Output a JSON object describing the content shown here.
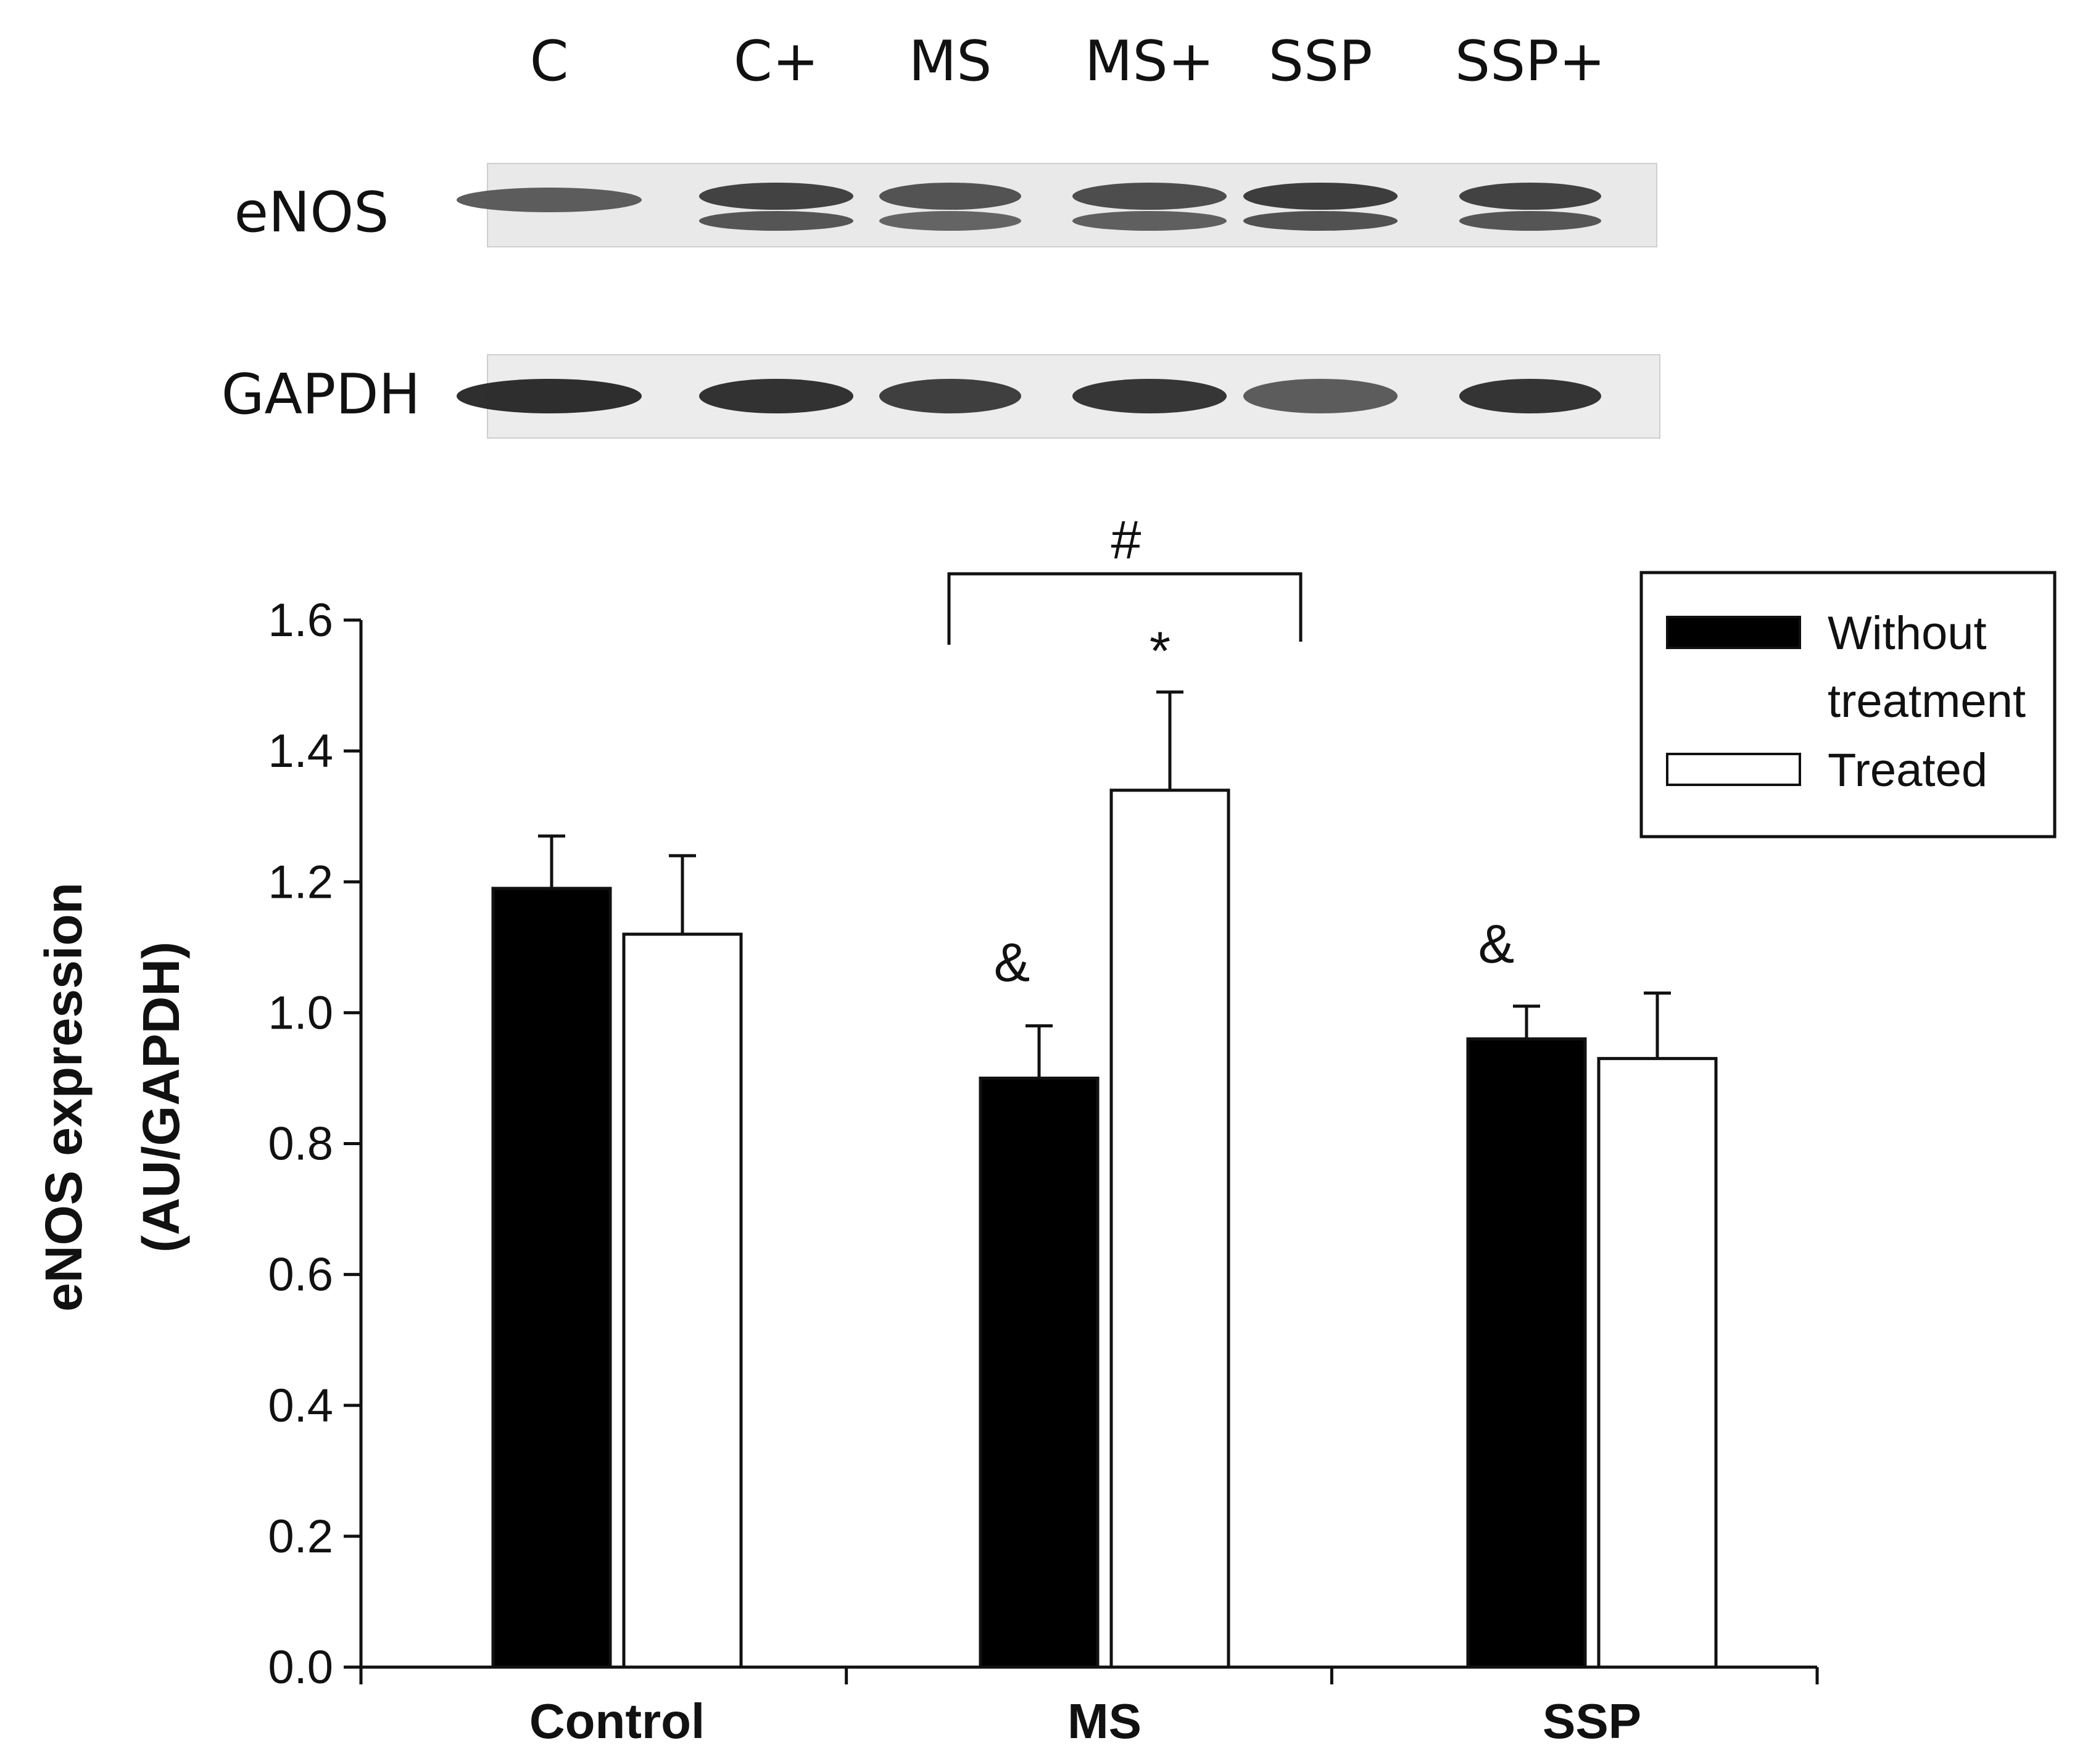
{
  "blot": {
    "lanes": [
      "C",
      "C+",
      "MS",
      "MS+",
      "SSP",
      "SSP+"
    ],
    "rows": [
      "eNOS",
      "GAPDH"
    ],
    "band_intensity": {
      "eNOS": [
        0.55,
        0.85,
        0.7,
        0.75,
        0.9,
        0.85
      ],
      "GAPDH": [
        0.95,
        0.92,
        0.8,
        0.88,
        0.55,
        0.9
      ]
    }
  },
  "chart_data": {
    "type": "bar",
    "categories": [
      "Control",
      "MS",
      "SSP"
    ],
    "series": [
      {
        "name": "Without treatment",
        "values": [
          1.19,
          0.9,
          0.96
        ],
        "errors": [
          0.08,
          0.08,
          0.05
        ],
        "color": "#000000"
      },
      {
        "name": "Treated",
        "values": [
          1.12,
          1.34,
          0.93
        ],
        "errors": [
          0.12,
          0.15,
          0.1
        ],
        "color": "#ffffff"
      }
    ],
    "ylabel_line1": "eNOS   expression",
    "ylabel_line2": "(AU/GAPDH)",
    "ylim": [
      0.0,
      1.6
    ],
    "yticks": [
      "0.0",
      "0.2",
      "0.4",
      "0.6",
      "0.8",
      "1.0",
      "1.2",
      "1.4",
      "1.6"
    ],
    "legend": {
      "position": "top-right",
      "entries": [
        {
          "lines": [
            "Without",
            "treatment"
          ],
          "color": "#000000"
        },
        {
          "lines": [
            "Treated"
          ],
          "color": "#ffffff"
        }
      ]
    },
    "annotations": {
      "bracket_symbol": "#",
      "star_symbol": "*",
      "amp_symbol": "&"
    }
  }
}
